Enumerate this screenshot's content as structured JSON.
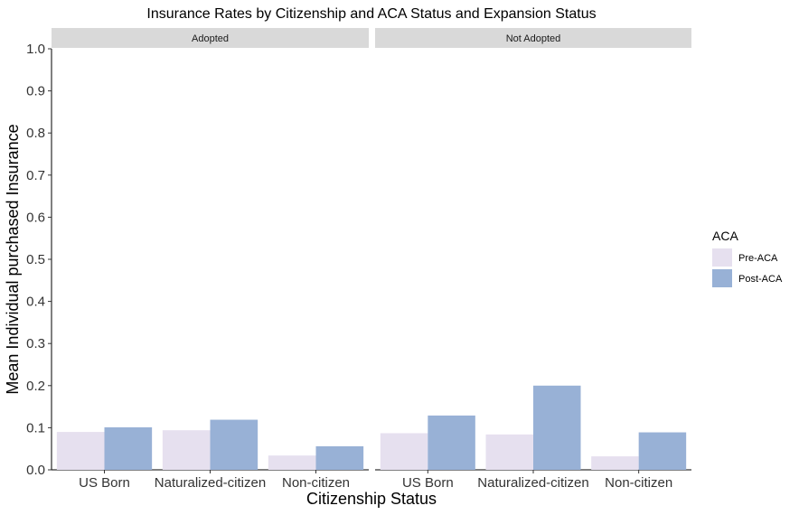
{
  "chart_data": {
    "type": "bar",
    "title": "Insurance Rates by Citizenship and ACA Status and Expansion Status",
    "xlabel": "Citizenship Status",
    "ylabel": "Mean Individual purchased Insurance",
    "ylim": [
      0,
      1.0
    ],
    "yticks": [
      "0.0",
      "0.1",
      "0.2",
      "0.3",
      "0.4",
      "0.5",
      "0.6",
      "0.7",
      "0.8",
      "0.9",
      "1.0"
    ],
    "categories": [
      "US Born",
      "Naturalized-citizen",
      "Non-citizen"
    ],
    "legend": {
      "title": "ACA",
      "position": "right"
    },
    "grid": false,
    "panels": [
      {
        "label": "Adopted",
        "series": [
          {
            "name": "Pre-ACA",
            "color": "#e6e0ef",
            "values": [
              0.09,
              0.094,
              0.034
            ]
          },
          {
            "name": "Post-ACA",
            "color": "#98b1d6",
            "values": [
              0.101,
              0.119,
              0.056
            ]
          }
        ]
      },
      {
        "label": "Not Adopted",
        "series": [
          {
            "name": "Pre-ACA",
            "color": "#e6e0ef",
            "values": [
              0.087,
              0.084,
              0.032
            ]
          },
          {
            "name": "Post-ACA",
            "color": "#98b1d6",
            "values": [
              0.129,
              0.2,
              0.089
            ]
          }
        ]
      }
    ]
  }
}
